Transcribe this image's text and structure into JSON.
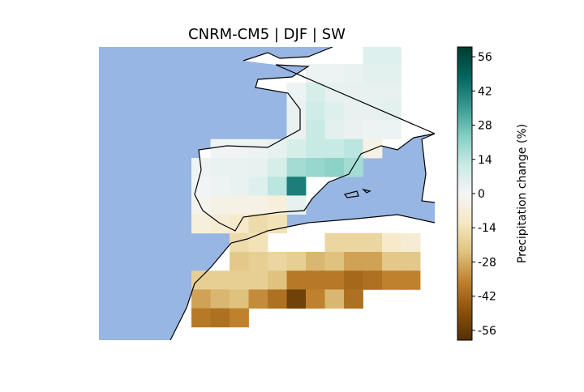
{
  "chart_data": {
    "type": "map",
    "title": "CNRM-CM5 | DJF | SW",
    "colorbar_label": "Precipitation change (%)",
    "colormap": [
      "#543005",
      "#8c510a",
      "#bf812d",
      "#dfc27d",
      "#f6e8c3",
      "#f5f5f5",
      "#c7eae5",
      "#80cdc1",
      "#35978f",
      "#01665e",
      "#003c30"
    ],
    "clim": [
      -60,
      60
    ],
    "cticks": [
      -56,
      -42,
      -28,
      -14,
      0,
      14,
      28,
      42,
      56
    ],
    "values": [
      [
        null,
        null,
        null,
        null,
        null,
        null,
        null,
        null,
        null,
        null,
        null,
        null,
        null,
        null,
        6,
        6,
        null,
        null
      ],
      [
        null,
        null,
        null,
        null,
        null,
        null,
        null,
        null,
        null,
        null,
        null,
        2,
        2,
        3,
        5,
        5,
        null,
        null
      ],
      [
        null,
        null,
        null,
        null,
        null,
        null,
        null,
        null,
        null,
        null,
        2,
        8,
        4,
        4,
        4,
        4,
        null,
        null
      ],
      [
        null,
        null,
        null,
        null,
        null,
        null,
        null,
        null,
        null,
        null,
        3,
        10,
        6,
        4,
        4,
        5,
        null,
        null
      ],
      [
        null,
        null,
        null,
        null,
        null,
        null,
        null,
        null,
        null,
        null,
        3,
        12,
        5,
        3,
        2,
        2,
        null,
        null
      ],
      [
        null,
        null,
        null,
        null,
        null,
        null,
        1,
        1,
        2,
        4,
        8,
        12,
        12,
        14,
        -4,
        null,
        null,
        null
      ],
      [
        null,
        null,
        null,
        null,
        null,
        2,
        3,
        3,
        4,
        8,
        18,
        20,
        22,
        18,
        null,
        null,
        null,
        null
      ],
      [
        null,
        null,
        null,
        null,
        null,
        1,
        2,
        3,
        6,
        14,
        42,
        null,
        null,
        null,
        null,
        null,
        null,
        null
      ],
      [
        null,
        null,
        null,
        null,
        null,
        -2,
        -4,
        -4,
        -4,
        -6,
        4,
        null,
        null,
        null,
        null,
        null,
        null,
        null
      ],
      [
        null,
        null,
        null,
        null,
        null,
        -6,
        -8,
        -10,
        -16,
        -14,
        null,
        null,
        null,
        null,
        null,
        null,
        null,
        null
      ],
      [
        null,
        null,
        null,
        null,
        null,
        null,
        null,
        -16,
        -14,
        null,
        null,
        null,
        -18,
        -18,
        -18,
        -10,
        -8,
        null
      ],
      [
        null,
        null,
        null,
        null,
        null,
        null,
        null,
        -22,
        -20,
        -18,
        -20,
        -26,
        -24,
        -30,
        -30,
        -22,
        -22,
        null
      ],
      [
        null,
        null,
        null,
        null,
        null,
        -20,
        -20,
        -20,
        -20,
        -24,
        -38,
        -38,
        -38,
        -42,
        -40,
        -36,
        -36,
        null
      ],
      [
        null,
        null,
        null,
        null,
        null,
        -30,
        -26,
        -24,
        -34,
        -40,
        -54,
        -36,
        -26,
        -40,
        null,
        null,
        null,
        null
      ],
      [
        null,
        null,
        null,
        null,
        null,
        -38,
        -40,
        -36,
        null,
        null,
        null,
        null,
        null,
        null,
        null,
        null,
        null,
        null
      ],
      [
        null,
        null,
        null,
        null,
        null,
        null,
        null,
        null,
        null,
        null,
        null,
        null,
        null,
        null,
        null,
        null,
        null,
        null
      ]
    ]
  }
}
